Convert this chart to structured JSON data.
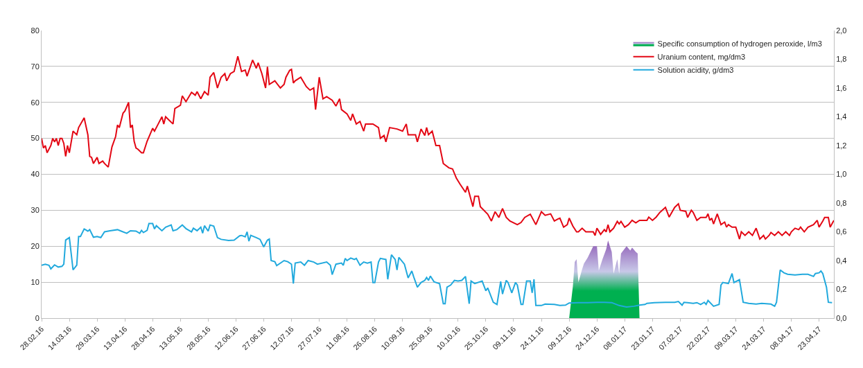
{
  "chart_data": {
    "type": "line",
    "grid": "y",
    "legend": "top right",
    "xlim": [
      "2016-02-28",
      "2017-05-01"
    ],
    "xticks": [
      {
        "value": "2016-02-28",
        "label": "28.02.16"
      },
      {
        "value": "2016-03-14",
        "label": "14.03.16"
      },
      {
        "value": "2016-03-29",
        "label": "29.03.16"
      },
      {
        "value": "2016-04-13",
        "label": "13.04.16"
      },
      {
        "value": "2016-04-28",
        "label": "28.04.16"
      },
      {
        "value": "2016-05-13",
        "label": "13.05.16"
      },
      {
        "value": "2016-05-28",
        "label": "28.05.16"
      },
      {
        "value": "2016-06-12",
        "label": "12.06.16"
      },
      {
        "value": "2016-06-27",
        "label": "27.06.16"
      },
      {
        "value": "2016-07-12",
        "label": "12.07.16"
      },
      {
        "value": "2016-07-27",
        "label": "27.07.16"
      },
      {
        "value": "2016-08-11",
        "label": "11.08.16"
      },
      {
        "value": "2016-08-26",
        "label": "26.08.16"
      },
      {
        "value": "2016-09-10",
        "label": "10.09.16"
      },
      {
        "value": "2016-09-25",
        "label": "25.09.16"
      },
      {
        "value": "2016-10-10",
        "label": "10.10.16"
      },
      {
        "value": "2016-10-25",
        "label": "25.10.16"
      },
      {
        "value": "2016-11-09",
        "label": "09.11.16"
      },
      {
        "value": "2016-11-24",
        "label": "24.11.16"
      },
      {
        "value": "2016-12-09",
        "label": "09.12.16"
      },
      {
        "value": "2016-12-24",
        "label": "24.12.16"
      },
      {
        "value": "2017-01-08",
        "label": "08.01.17"
      },
      {
        "value": "2017-01-23",
        "label": "23.01.17"
      },
      {
        "value": "2017-02-07",
        "label": "07.02.17"
      },
      {
        "value": "2017-02-22",
        "label": "22.02.17"
      },
      {
        "value": "2017-03-09",
        "label": "09.03.17"
      },
      {
        "value": "2017-03-24",
        "label": "24.03.17"
      },
      {
        "value": "2017-04-08",
        "label": "08.04.17"
      },
      {
        "value": "2017-04-23",
        "label": "23.04.17"
      }
    ],
    "ylim": [
      0,
      80
    ],
    "yticks": [
      0,
      10,
      20,
      30,
      40,
      50,
      60,
      70,
      80
    ],
    "y2lim": [
      0,
      2
    ],
    "y2ticks": [
      {
        "value": 0,
        "label": "0,0"
      },
      {
        "value": 0.2,
        "label": "0,2"
      },
      {
        "value": 0.4,
        "label": "0,4"
      },
      {
        "value": 0.6,
        "label": "0,6"
      },
      {
        "value": 0.8,
        "label": "0,8"
      },
      {
        "value": 1.0,
        "label": "1,0"
      },
      {
        "value": 1.2,
        "label": "1,2"
      },
      {
        "value": 1.4,
        "label": "1,4"
      },
      {
        "value": 1.6,
        "label": "1,6"
      },
      {
        "value": 1.8,
        "label": "1,8"
      },
      {
        "value": 2.0,
        "label": "2,0"
      }
    ],
    "series": [
      {
        "name": "Specific consumption of hydrogen peroxide, l/m3",
        "type": "area",
        "axis": "y2",
        "color": "#8e5bb5",
        "x": [
          "2016-12-09",
          "2016-12-11",
          "2016-12-12",
          "2016-12-13",
          "2016-12-14",
          "2016-12-16",
          "2016-12-17",
          "2016-12-19",
          "2016-12-22",
          "2016-12-24",
          "2016-12-25",
          "2016-12-27",
          "2016-12-29",
          "2016-12-30",
          "2017-01-01",
          "2017-01-02",
          "2017-01-04",
          "2017-01-05",
          "2017-01-06",
          "2017-01-09",
          "2017-01-11",
          "2017-01-12",
          "2017-01-14",
          "2017-01-15",
          "2017-01-16"
        ],
        "values": [
          0,
          0.22,
          0.39,
          0.41,
          0.25,
          0.34,
          0.38,
          0.42,
          0.5,
          0.5,
          0.33,
          0.41,
          0.48,
          0.54,
          0.46,
          0.31,
          0.41,
          0.31,
          0.45,
          0.5,
          0.47,
          0.49,
          0.46,
          0.45,
          0
        ]
      },
      {
        "name": "Uranium content, mg/dm3",
        "color": "#e30613",
        "x": [
          "2016-02-28",
          "2016-02-29",
          "2016-03-01",
          "2016-03-02",
          "2016-03-04",
          "2016-03-05",
          "2016-03-06",
          "2016-03-07",
          "2016-03-08",
          "2016-03-09",
          "2016-03-10",
          "2016-03-11",
          "2016-03-12",
          "2016-03-13",
          "2016-03-14",
          "2016-03-16",
          "2016-03-18",
          "2016-03-19",
          "2016-03-22",
          "2016-03-24",
          "2016-03-25",
          "2016-03-26",
          "2016-03-27",
          "2016-03-29",
          "2016-03-30",
          "2016-04-01",
          "2016-04-02",
          "2016-04-04",
          "2016-04-06",
          "2016-04-08",
          "2016-04-09",
          "2016-04-10",
          "2016-04-12",
          "2016-04-13",
          "2016-04-15",
          "2016-04-16",
          "2016-04-17",
          "2016-04-18",
          "2016-04-19",
          "2016-04-20",
          "2016-04-22",
          "2016-04-23",
          "2016-04-25",
          "2016-04-28",
          "2016-04-29",
          "2016-05-01",
          "2016-05-03",
          "2016-05-04",
          "2016-05-05",
          "2016-05-07",
          "2016-05-09",
          "2016-05-10",
          "2016-05-13",
          "2016-05-14",
          "2016-05-16",
          "2016-05-19",
          "2016-05-21",
          "2016-05-22",
          "2016-05-24",
          "2016-05-26",
          "2016-05-28",
          "2016-05-29",
          "2016-05-31",
          "2016-06-02",
          "2016-06-04",
          "2016-06-06",
          "2016-06-07",
          "2016-06-09",
          "2016-06-11",
          "2016-06-13",
          "2016-06-15",
          "2016-06-17",
          "2016-06-18",
          "2016-06-21",
          "2016-06-23",
          "2016-06-24",
          "2016-06-26",
          "2016-06-28",
          "2016-06-29",
          "2016-06-30",
          "2016-07-03",
          "2016-07-06",
          "2016-07-08",
          "2016-07-09",
          "2016-07-11",
          "2016-07-12",
          "2016-07-13",
          "2016-07-14",
          "2016-07-17",
          "2016-07-20",
          "2016-07-22",
          "2016-07-24",
          "2016-07-25",
          "2016-07-27",
          "2016-07-29",
          "2016-07-31",
          "2016-08-03",
          "2016-08-05",
          "2016-08-07",
          "2016-08-08",
          "2016-08-11",
          "2016-08-13",
          "2016-08-14",
          "2016-08-16",
          "2016-08-18",
          "2016-08-20",
          "2016-08-21",
          "2016-08-25",
          "2016-08-28",
          "2016-08-29",
          "2016-08-31",
          "2016-09-01",
          "2016-09-03",
          "2016-09-07",
          "2016-09-10",
          "2016-09-12",
          "2016-09-13",
          "2016-09-17",
          "2016-09-18",
          "2016-09-20",
          "2016-09-22",
          "2016-09-23",
          "2016-09-24",
          "2016-09-26",
          "2016-09-28",
          "2016-09-30",
          "2016-10-02",
          "2016-10-05",
          "2016-10-07",
          "2016-10-09",
          "2016-10-11",
          "2016-10-14",
          "2016-10-15",
          "2016-10-18",
          "2016-10-19",
          "2016-10-21",
          "2016-10-22",
          "2016-10-26",
          "2016-10-28",
          "2016-10-30",
          "2016-11-01",
          "2016-11-03",
          "2016-11-05",
          "2016-11-07",
          "2016-11-11",
          "2016-11-13",
          "2016-11-15",
          "2016-11-18",
          "2016-11-21",
          "2016-11-24",
          "2016-11-26",
          "2016-11-29",
          "2016-12-01",
          "2016-12-03",
          "2016-12-04",
          "2016-12-06",
          "2016-12-08",
          "2016-12-09",
          "2016-12-11",
          "2016-12-13",
          "2016-12-14",
          "2016-12-16",
          "2016-12-18",
          "2016-12-22",
          "2016-12-23",
          "2016-12-24",
          "2016-12-26",
          "2016-12-28",
          "2016-12-29",
          "2016-12-30",
          "2016-12-31",
          "2017-01-02",
          "2017-01-04",
          "2017-01-05",
          "2017-01-06",
          "2017-01-08",
          "2017-01-10",
          "2017-01-12",
          "2017-01-14",
          "2017-01-16",
          "2017-01-20",
          "2017-01-21",
          "2017-01-23",
          "2017-01-25",
          "2017-01-27",
          "2017-01-30",
          "2017-02-01",
          "2017-02-04",
          "2017-02-06",
          "2017-02-07",
          "2017-02-10",
          "2017-02-11",
          "2017-02-13",
          "2017-02-14",
          "2017-02-16",
          "2017-02-18",
          "2017-02-21",
          "2017-02-22",
          "2017-02-23",
          "2017-02-24",
          "2017-02-25",
          "2017-02-27",
          "2017-03-01",
          "2017-03-03",
          "2017-03-04",
          "2017-03-05",
          "2017-03-07",
          "2017-03-09",
          "2017-03-11",
          "2017-03-12",
          "2017-03-14",
          "2017-03-16",
          "2017-03-18",
          "2017-03-20",
          "2017-03-22",
          "2017-03-24",
          "2017-03-25",
          "2017-03-27",
          "2017-03-28",
          "2017-03-30",
          "2017-04-01",
          "2017-04-03",
          "2017-04-05",
          "2017-04-07",
          "2017-04-08",
          "2017-04-10",
          "2017-04-12",
          "2017-04-13",
          "2017-04-15",
          "2017-04-17",
          "2017-04-20",
          "2017-04-22",
          "2017-04-23",
          "2017-04-25",
          "2017-04-26",
          "2017-04-28",
          "2017-04-29",
          "2017-05-01"
        ],
        "values": [
          50,
          47.3,
          48,
          46,
          48,
          50,
          49,
          50,
          48,
          50,
          50,
          48.6,
          45,
          48,
          46,
          52,
          51,
          53,
          55.7,
          51,
          45,
          44.7,
          43,
          44.7,
          43,
          43.7,
          43,
          42,
          47.6,
          50.5,
          53.7,
          53,
          57,
          57.6,
          60,
          53,
          53.7,
          49.2,
          47.3,
          47,
          46,
          46,
          49.2,
          52.8,
          52,
          54,
          56,
          54,
          56,
          55,
          54,
          58.3,
          59.2,
          61.8,
          60.2,
          62.8,
          62,
          63,
          61,
          63,
          62,
          67,
          68.3,
          64,
          67,
          68,
          66,
          68,
          68.6,
          72.8,
          68.6,
          69,
          67.3,
          71.8,
          69.5,
          71,
          68,
          64,
          69.9,
          65,
          66,
          64,
          65,
          67,
          68.9,
          69.2,
          65.4,
          66,
          67,
          64.4,
          63.4,
          64,
          58,
          67,
          61,
          61.6,
          60.6,
          59,
          61,
          58,
          56.8,
          55,
          56.8,
          54,
          54.7,
          52,
          54,
          54,
          53,
          50,
          50.8,
          49,
          53,
          52.6,
          52,
          54,
          51,
          51,
          49,
          52.6,
          50.8,
          53,
          51,
          52,
          48,
          48,
          43,
          41.8,
          41.5,
          39,
          37.3,
          35,
          36.7,
          31,
          33.9,
          33.9,
          31,
          28.9,
          27,
          29.6,
          28,
          30.5,
          28,
          27,
          26,
          26.6,
          28,
          28.9,
          26,
          29.6,
          28.6,
          29,
          27,
          27.6,
          27.8,
          25.3,
          26,
          27.8,
          25.6,
          24,
          24,
          25,
          24,
          24,
          23,
          25,
          23.3,
          24.6,
          24,
          26,
          24,
          25,
          26.9,
          26.2,
          26.9,
          25.3,
          26,
          27.2,
          26.5,
          27.2,
          27.2,
          28.1,
          27.2,
          28.1,
          29.4,
          30.8,
          28.1,
          30.8,
          31.8,
          30,
          29.7,
          28,
          30,
          29.4,
          27.2,
          28,
          28,
          29,
          27.2,
          27.8,
          26.2,
          29,
          26,
          26.7,
          25.3,
          26,
          25.3,
          25.3,
          22,
          24,
          23,
          24,
          23,
          25,
          22,
          23,
          22,
          23,
          23.8,
          23,
          24,
          23,
          24,
          23,
          24,
          25,
          24.6,
          25.3,
          24,
          25.3,
          26,
          27.2,
          25.3,
          27,
          28,
          28,
          25.3,
          27.2
        ]
      },
      {
        "name": "Solution acidity, g/dm3",
        "color": "#21a9dd",
        "x": [
          "2016-02-28",
          "2016-03-01",
          "2016-03-03",
          "2016-03-04",
          "2016-03-06",
          "2016-03-08",
          "2016-03-10",
          "2016-03-11",
          "2016-03-12",
          "2016-03-14",
          "2016-03-16",
          "2016-03-18",
          "2016-03-19",
          "2016-03-20",
          "2016-03-22",
          "2016-03-24",
          "2016-03-25",
          "2016-03-27",
          "2016-03-29",
          "2016-03-31",
          "2016-04-02",
          "2016-04-05",
          "2016-04-09",
          "2016-04-11",
          "2016-04-14",
          "2016-04-16",
          "2016-04-19",
          "2016-04-21",
          "2016-04-22",
          "2016-04-23",
          "2016-04-25",
          "2016-04-26",
          "2016-04-28",
          "2016-04-29",
          "2016-04-30",
          "2016-05-03",
          "2016-05-05",
          "2016-05-08",
          "2016-05-09",
          "2016-05-11",
          "2016-05-14",
          "2016-05-16",
          "2016-05-19",
          "2016-05-20",
          "2016-05-22",
          "2016-05-24",
          "2016-05-25",
          "2016-05-26",
          "2016-05-28",
          "2016-05-29",
          "2016-05-31",
          "2016-06-02",
          "2016-06-04",
          "2016-06-08",
          "2016-06-11",
          "2016-06-14",
          "2016-06-15",
          "2016-06-17",
          "2016-06-18",
          "2016-06-19",
          "2016-06-20",
          "2016-06-23",
          "2016-06-25",
          "2016-06-27",
          "2016-06-29",
          "2016-06-30",
          "2016-07-01",
          "2016-07-03",
          "2016-07-04",
          "2016-07-08",
          "2016-07-10",
          "2016-07-12",
          "2016-07-13",
          "2016-07-14",
          "2016-07-17",
          "2016-07-19",
          "2016-07-21",
          "2016-07-24",
          "2016-07-26",
          "2016-07-31",
          "2016-08-02",
          "2016-08-03",
          "2016-08-05",
          "2016-08-08",
          "2016-08-09",
          "2016-08-10",
          "2016-08-11",
          "2016-08-13",
          "2016-08-15",
          "2016-08-16",
          "2016-08-18",
          "2016-08-20",
          "2016-08-22",
          "2016-08-24",
          "2016-08-25",
          "2016-08-26",
          "2016-08-28",
          "2016-08-29",
          "2016-09-01",
          "2016-09-02",
          "2016-09-04",
          "2016-09-06",
          "2016-09-07",
          "2016-09-08",
          "2016-09-11",
          "2016-09-13",
          "2016-09-15",
          "2016-09-16",
          "2016-09-18",
          "2016-09-20",
          "2016-09-22",
          "2016-09-23",
          "2016-09-24",
          "2016-09-25",
          "2016-09-27",
          "2016-09-30",
          "2016-10-02",
          "2016-10-03",
          "2016-10-04",
          "2016-10-06",
          "2016-10-08",
          "2016-10-10",
          "2016-10-12",
          "2016-10-14",
          "2016-10-16",
          "2016-10-17",
          "2016-10-19",
          "2016-10-23",
          "2016-10-25",
          "2016-10-26",
          "2016-10-29",
          "2016-10-31",
          "2016-11-02",
          "2016-11-03",
          "2016-11-05",
          "2016-11-06",
          "2016-11-08",
          "2016-11-10",
          "2016-11-11",
          "2016-11-13",
          "2016-11-14",
          "2016-11-16",
          "2016-11-18",
          "2016-11-19",
          "2016-11-20",
          "2016-11-21",
          "2016-11-24",
          "2016-11-26",
          "2016-12-01",
          "2016-12-04",
          "2016-12-07",
          "2016-12-09",
          "2016-12-14",
          "2016-12-19",
          "2016-12-24",
          "2016-12-28",
          "2017-01-01",
          "2017-01-05",
          "2017-01-09",
          "2017-01-13",
          "2017-01-16",
          "2017-01-19",
          "2017-01-20",
          "2017-01-24",
          "2017-01-30",
          "2017-02-04",
          "2017-02-06",
          "2017-02-08",
          "2017-02-09",
          "2017-02-11",
          "2017-02-14",
          "2017-02-16",
          "2017-02-18",
          "2017-02-20",
          "2017-02-21",
          "2017-02-22",
          "2017-02-25",
          "2017-02-28",
          "2017-03-01",
          "2017-03-02",
          "2017-03-05",
          "2017-03-07",
          "2017-03-08",
          "2017-03-11",
          "2017-03-13",
          "2017-03-16",
          "2017-03-20",
          "2017-03-23",
          "2017-03-28",
          "2017-03-30",
          "2017-03-31",
          "2017-04-02",
          "2017-04-04",
          "2017-04-06",
          "2017-04-10",
          "2017-04-14",
          "2017-04-17",
          "2017-04-20",
          "2017-04-21",
          "2017-04-23",
          "2017-04-24",
          "2017-04-25",
          "2017-04-27",
          "2017-04-28",
          "2017-04-30"
        ],
        "values": [
          14.7,
          15,
          14.7,
          13.7,
          14.8,
          14.2,
          14.4,
          15,
          21.7,
          22.4,
          13.4,
          14.7,
          22.7,
          22.7,
          24.8,
          24.2,
          24.6,
          22.5,
          22.7,
          22.4,
          24,
          24.3,
          24.6,
          24.2,
          23.6,
          24.3,
          24.2,
          23.6,
          24.4,
          23.8,
          24.4,
          26.3,
          26.3,
          24.8,
          25.7,
          24.3,
          25.3,
          25.9,
          24.3,
          24.6,
          25.9,
          24.9,
          24,
          25,
          24.3,
          25.3,
          23.6,
          25.7,
          24.2,
          25.9,
          25.6,
          22.4,
          21.9,
          21.6,
          21.7,
          22.9,
          23,
          22.6,
          24,
          21.4,
          23,
          22.4,
          21.9,
          19.8,
          21.7,
          22,
          16,
          15.7,
          14.6,
          16,
          15.7,
          15,
          9.6,
          15.3,
          15.6,
          14.7,
          16,
          15.6,
          15,
          15.6,
          14.7,
          12.1,
          15,
          15.3,
          14.7,
          16.6,
          16,
          16.7,
          16.3,
          16.6,
          14.7,
          15.6,
          15.3,
          15.6,
          9.9,
          9.9,
          15.6,
          16.6,
          16.3,
          10.8,
          17.6,
          16.3,
          13.4,
          16.9,
          15,
          11.2,
          13.1,
          11.5,
          8.6,
          9.9,
          10.5,
          11.3,
          10.5,
          11.7,
          10.1,
          9.6,
          4,
          4,
          8.6,
          9.2,
          10.5,
          10.3,
          10.5,
          11.6,
          4,
          10.3,
          9.6,
          10.3,
          7.6,
          8.4,
          4.4,
          3.8,
          10.2,
          6.7,
          10.5,
          9.9,
          7,
          9.9,
          9.2,
          3.8,
          3.8,
          10.3,
          10.3,
          7,
          10.8,
          3.5,
          3.5,
          3.9,
          3.8,
          3.5,
          3.6,
          4.2,
          4.3,
          4.3,
          4.4,
          4.4,
          4.3,
          3.5,
          3.1,
          3.3,
          3.6,
          3.8,
          4.1,
          4.3,
          4.4,
          4.4,
          4.6,
          3.6,
          4.4,
          4.3,
          4.1,
          4.3,
          3.8,
          4.4,
          3.8,
          4.9,
          3.3,
          3.8,
          9.2,
          9.9,
          9.6,
          12.4,
          9.9,
          10.7,
          4.4,
          4.1,
          3.9,
          4.1,
          3.9,
          3.3,
          4.4,
          13.4,
          12.6,
          12.2,
          12,
          12.2,
          12.2,
          11.6,
          12.4,
          12.6,
          13.1,
          12.4,
          8.6,
          4.4,
          4.3
        ]
      }
    ]
  }
}
